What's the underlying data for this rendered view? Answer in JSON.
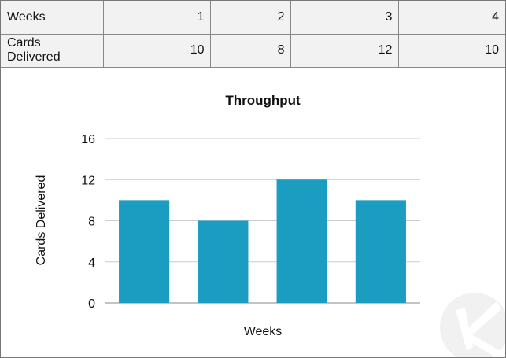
{
  "table": {
    "rows": [
      {
        "label": "Weeks",
        "values": [
          "1",
          "2",
          "3",
          "4"
        ]
      },
      {
        "label": "Cards Delivered",
        "values": [
          "10",
          "8",
          "12",
          "10"
        ]
      }
    ]
  },
  "chart_data": {
    "type": "bar",
    "title": "Throughput",
    "xlabel": "Weeks",
    "ylabel": "Cards Delivered",
    "categories": [
      "1",
      "2",
      "3",
      "4"
    ],
    "values": [
      10,
      8,
      12,
      10
    ],
    "ylim": [
      0,
      16
    ],
    "yticks": [
      "0",
      "4",
      "8",
      "12",
      "16"
    ],
    "show_xtick_labels": false,
    "grid": true,
    "bar_color": "#1b9dc2"
  },
  "watermark": {
    "logo": "K"
  }
}
